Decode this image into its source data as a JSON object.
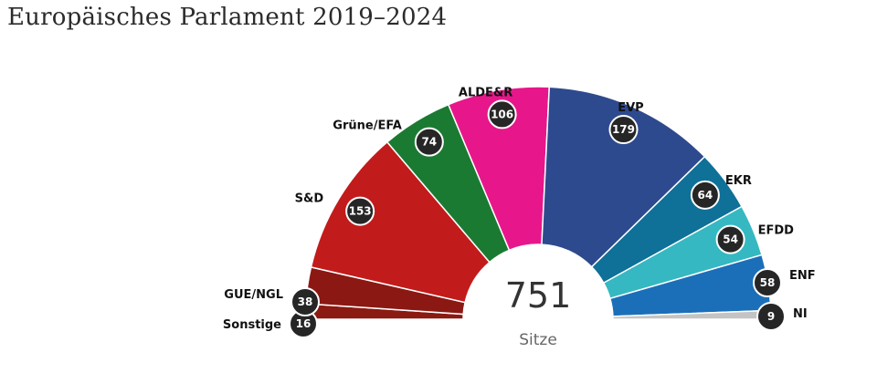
{
  "page": {
    "title": "Europäisches Parlament 2019–2024"
  },
  "chart_data": {
    "type": "pie",
    "variant": "parliament-semicircle",
    "total": 751,
    "total_label": "Sitze",
    "series": [
      {
        "name": "Sonstige",
        "value": 16,
        "color": "#8a1a12"
      },
      {
        "name": "GUE/NGL",
        "value": 38,
        "color": "#8b1813"
      },
      {
        "name": "S&D",
        "value": 153,
        "color": "#c21b1b"
      },
      {
        "name": "Grüne/EFA",
        "value": 74,
        "color": "#1b7a32"
      },
      {
        "name": "ALDE&R",
        "value": 106,
        "color": "#e8168b"
      },
      {
        "name": "EVP",
        "value": 179,
        "color": "#2e4a8e"
      },
      {
        "name": "EKR",
        "value": 64,
        "color": "#0f7098"
      },
      {
        "name": "EFDD",
        "value": 54,
        "color": "#35b8c1"
      },
      {
        "name": "ENF",
        "value": 58,
        "color": "#1b6fb8"
      },
      {
        "name": "NI",
        "value": 9,
        "color": "#c4c4c4"
      }
    ]
  }
}
